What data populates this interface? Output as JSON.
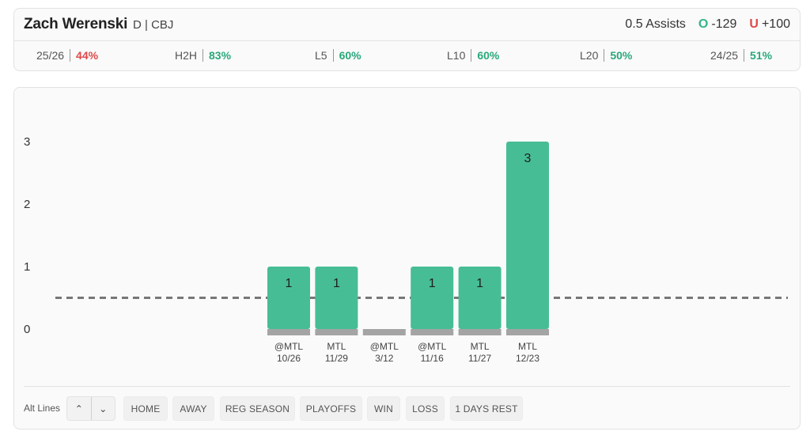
{
  "player": {
    "name": "Zach Werenski",
    "meta": "D | CBJ"
  },
  "line": {
    "prop": "0.5 Assists",
    "over_label": "O",
    "over_odds": "-129",
    "under_label": "U",
    "under_odds": "+100"
  },
  "stats": [
    {
      "label": "25/26",
      "value": "44%",
      "status": "bad"
    },
    {
      "label": "H2H",
      "value": "83%",
      "status": "good"
    },
    {
      "label": "L5",
      "value": "60%",
      "status": "good"
    },
    {
      "label": "L10",
      "value": "60%",
      "status": "good"
    },
    {
      "label": "L20",
      "value": "50%",
      "status": "good"
    },
    {
      "label": "24/25",
      "value": "51%",
      "status": "good"
    }
  ],
  "chart_data": {
    "type": "bar",
    "title": "",
    "xlabel": "",
    "ylabel": "",
    "yticks": [
      0,
      1,
      2,
      3
    ],
    "ylim": [
      0,
      3
    ],
    "line_value": 0.5,
    "grid": false,
    "categories": [
      {
        "opponent": "@MTL",
        "date": "10/26"
      },
      {
        "opponent": "MTL",
        "date": "11/29"
      },
      {
        "opponent": "@MTL",
        "date": "3/12"
      },
      {
        "opponent": "@MTL",
        "date": "11/16"
      },
      {
        "opponent": "MTL",
        "date": "11/27"
      },
      {
        "opponent": "MTL",
        "date": "12/23"
      }
    ],
    "values": [
      1,
      1,
      0,
      1,
      1,
      3
    ]
  },
  "colors": {
    "bar_hit": "#47bd96",
    "bar_base": "#a4a4a4",
    "line": "#777777"
  },
  "footer": {
    "alt_lines_label": "Alt Lines",
    "up_arrow": "⌃",
    "down_arrow": "⌄",
    "filters": [
      "HOME",
      "AWAY",
      "REG SEASON",
      "PLAYOFFS",
      "WIN",
      "LOSS",
      "1 DAYS REST"
    ]
  }
}
